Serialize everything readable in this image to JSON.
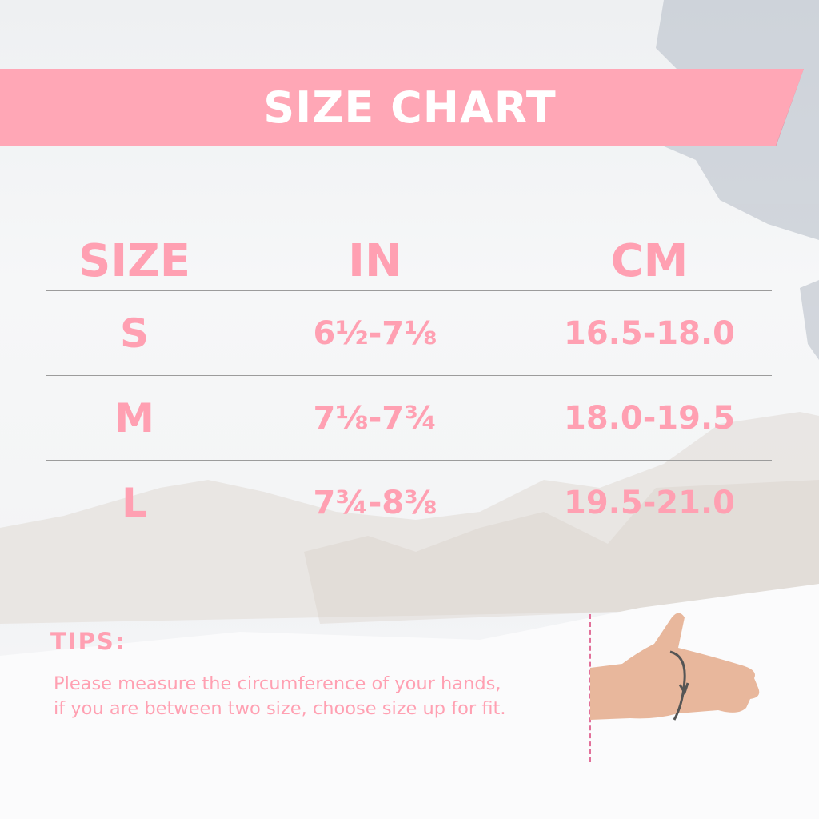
{
  "banner": {
    "title": "SIZE CHART"
  },
  "table": {
    "headers": [
      "SIZE",
      "IN",
      "CM"
    ],
    "rows": [
      {
        "size": "S",
        "in": "6½-7⅛",
        "cm": "16.5-18.0"
      },
      {
        "size": "M",
        "in": "7⅛-7¾",
        "cm": "18.0-19.5"
      },
      {
        "size": "L",
        "in": "7¾-8⅜",
        "cm": "19.5-21.0"
      }
    ]
  },
  "tips": {
    "heading": "TIPS:",
    "line1": "Please measure the circumference of your hands,",
    "line2": "if you are between two size, choose size up for fit."
  },
  "colors": {
    "accent": "#ffa7b6",
    "text": "#ffa0b2",
    "measure_line": "#e2709a"
  },
  "illustration": {
    "icon": "hand-measurement-icon"
  }
}
